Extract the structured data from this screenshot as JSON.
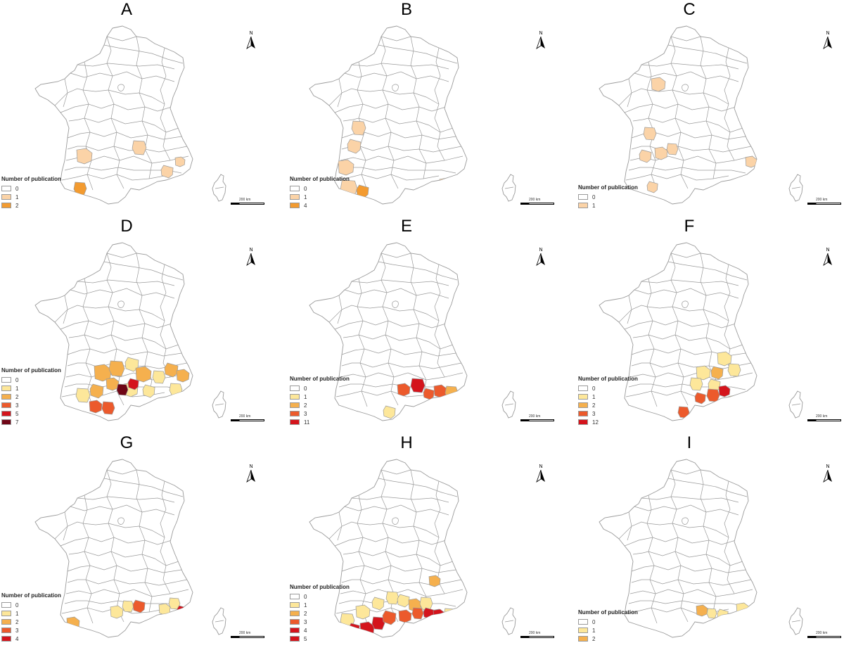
{
  "legend_title": "Number of publication",
  "scale_label": "200 km",
  "north_label": "N",
  "colors": {
    "border": "#9a9a9a",
    "empty": "#ffffff",
    "pale_peach": "#fbd3a7",
    "orange": "#f39b30",
    "light_yellow": "#fde79a",
    "light_orange": "#f5b04e",
    "red_orange": "#ec5a2c",
    "red": "#d4141c",
    "dark_red": "#6f0616"
  },
  "panels": [
    {
      "letter": "A",
      "legend": [
        {
          "label": "0",
          "color": "empty"
        },
        {
          "label": "1",
          "color": "pale_peach"
        },
        {
          "label": "2",
          "color": "orange"
        }
      ]
    },
    {
      "letter": "B",
      "legend": [
        {
          "label": "0",
          "color": "empty"
        },
        {
          "label": "1",
          "color": "pale_peach"
        },
        {
          "label": "4",
          "color": "orange"
        }
      ]
    },
    {
      "letter": "C",
      "legend": [
        {
          "label": "0",
          "color": "empty"
        },
        {
          "label": "1",
          "color": "pale_peach"
        }
      ]
    },
    {
      "letter": "D",
      "legend": [
        {
          "label": "0",
          "color": "empty"
        },
        {
          "label": "1",
          "color": "light_yellow"
        },
        {
          "label": "2",
          "color": "light_orange"
        },
        {
          "label": "3",
          "color": "red_orange"
        },
        {
          "label": "5",
          "color": "red"
        },
        {
          "label": "7",
          "color": "dark_red"
        }
      ]
    },
    {
      "letter": "E",
      "legend": [
        {
          "label": "0",
          "color": "empty"
        },
        {
          "label": "1",
          "color": "light_yellow"
        },
        {
          "label": "2",
          "color": "light_orange"
        },
        {
          "label": "3",
          "color": "red_orange"
        },
        {
          "label": "11",
          "color": "red"
        }
      ]
    },
    {
      "letter": "F",
      "legend": [
        {
          "label": "0",
          "color": "empty"
        },
        {
          "label": "1",
          "color": "light_yellow"
        },
        {
          "label": "2",
          "color": "light_orange"
        },
        {
          "label": "3",
          "color": "red_orange"
        },
        {
          "label": "12",
          "color": "red"
        }
      ]
    },
    {
      "letter": "G",
      "legend": [
        {
          "label": "0",
          "color": "empty"
        },
        {
          "label": "1",
          "color": "light_yellow"
        },
        {
          "label": "2",
          "color": "light_orange"
        },
        {
          "label": "3",
          "color": "red_orange"
        },
        {
          "label": "4",
          "color": "red"
        }
      ]
    },
    {
      "letter": "H",
      "legend": [
        {
          "label": "0",
          "color": "empty"
        },
        {
          "label": "1",
          "color": "light_yellow"
        },
        {
          "label": "2",
          "color": "light_orange"
        },
        {
          "label": "3",
          "color": "red_orange"
        },
        {
          "label": "4",
          "color": "red"
        },
        {
          "label": "5",
          "color": "red"
        }
      ]
    },
    {
      "letter": "I",
      "legend": [
        {
          "label": "0",
          "color": "empty"
        },
        {
          "label": "1",
          "color": "light_yellow"
        },
        {
          "label": "2",
          "color": "light_orange"
        }
      ]
    }
  ]
}
